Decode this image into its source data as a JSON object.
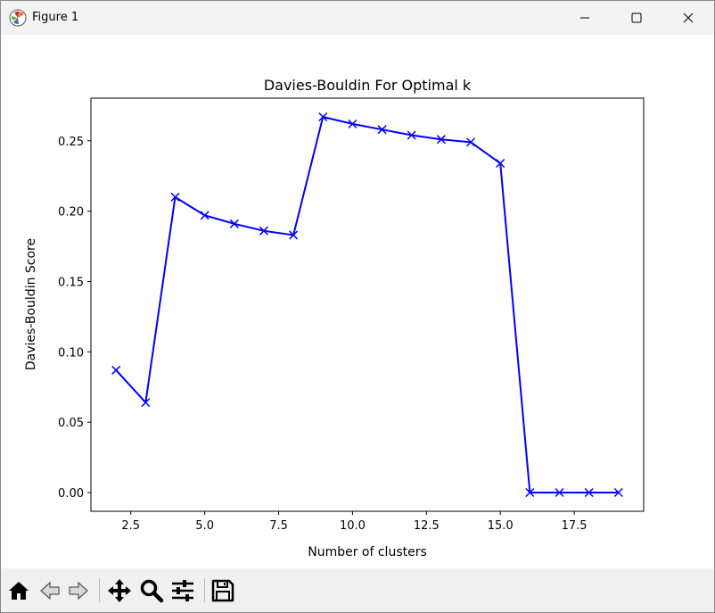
{
  "window": {
    "title": "Figure 1",
    "app_icon": "matplotlib-icon",
    "controls": [
      "minimize-icon",
      "maximize-icon",
      "close-icon"
    ]
  },
  "toolbar": {
    "buttons": [
      {
        "name": "home-button",
        "icon": "home-icon"
      },
      {
        "name": "back-button",
        "icon": "back-arrow-icon"
      },
      {
        "name": "forward-button",
        "icon": "forward-arrow-icon"
      },
      {
        "name": "pan-button",
        "icon": "move-icon"
      },
      {
        "name": "zoom-button",
        "icon": "magnifier-icon"
      },
      {
        "name": "configure-subplots-button",
        "icon": "sliders-icon"
      },
      {
        "name": "save-button",
        "icon": "floppy-disk-icon"
      }
    ]
  },
  "colors": {
    "line": "#0000ff",
    "axes": "#000000",
    "titlebar_bg": "#f3f3f3",
    "toolbar_bg": "#f0f0f0"
  },
  "chart_data": {
    "type": "line",
    "title": "Davies-Bouldin For Optimal k",
    "xlabel": "Number of clusters",
    "ylabel": "Davies-Bouldin Score",
    "marker": "x",
    "x": [
      2,
      3,
      4,
      5,
      6,
      7,
      8,
      9,
      10,
      11,
      12,
      13,
      14,
      15,
      16,
      17,
      18,
      19
    ],
    "y": [
      0.087,
      0.064,
      0.21,
      0.197,
      0.191,
      0.186,
      0.183,
      0.267,
      0.262,
      0.258,
      0.254,
      0.251,
      0.249,
      0.234,
      0.0,
      0.0,
      0.0,
      0.0
    ],
    "xlim": [
      1.15,
      19.85
    ],
    "ylim": [
      -0.0133,
      0.2803
    ],
    "xticks": [
      2.5,
      5.0,
      7.5,
      10.0,
      12.5,
      15.0,
      17.5
    ],
    "xtick_labels": [
      "2.5",
      "5.0",
      "7.5",
      "10.0",
      "12.5",
      "15.0",
      "17.5"
    ],
    "yticks": [
      0.0,
      0.05,
      0.1,
      0.15,
      0.2,
      0.25
    ],
    "ytick_labels": [
      "0.00",
      "0.05",
      "0.10",
      "0.15",
      "0.20",
      "0.25"
    ],
    "grid": false,
    "legend": "none"
  }
}
